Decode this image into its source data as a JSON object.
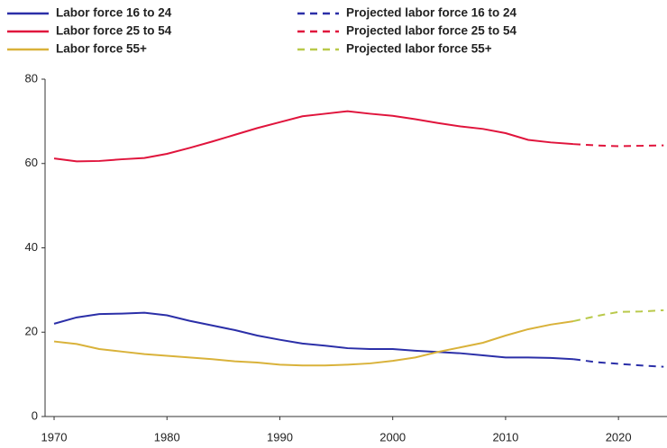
{
  "chart_data": {
    "type": "line",
    "series": [
      {
        "name": "Labor force 16 to 24",
        "color": "#2b2fa8",
        "style": "solid",
        "x": [
          1970,
          1972,
          1974,
          1976,
          1978,
          1980,
          1982,
          1984,
          1986,
          1988,
          1990,
          1992,
          1994,
          1996,
          1998,
          2000,
          2002,
          2004,
          2006,
          2008,
          2010,
          2012,
          2014,
          2016
        ],
        "values": [
          22,
          23.5,
          24.3,
          24.4,
          24.6,
          24,
          22.7,
          21.6,
          20.5,
          19.2,
          18.2,
          17.3,
          16.8,
          16.2,
          16,
          16,
          15.6,
          15.3,
          15,
          14.5,
          14,
          14,
          13.9,
          13.6
        ]
      },
      {
        "name": "Labor force 25 to 54",
        "color": "#e0143c",
        "style": "solid",
        "x": [
          1970,
          1972,
          1974,
          1976,
          1978,
          1980,
          1982,
          1984,
          1986,
          1988,
          1990,
          1992,
          1994,
          1996,
          1998,
          2000,
          2002,
          2004,
          2006,
          2008,
          2010,
          2012,
          2014,
          2016
        ],
        "values": [
          61.2,
          60.5,
          60.6,
          61,
          61.3,
          62.3,
          63.7,
          65.2,
          66.8,
          68.4,
          69.8,
          71.2,
          71.8,
          72.4,
          71.8,
          71.3,
          70.5,
          69.6,
          68.8,
          68.2,
          67.2,
          65.6,
          65,
          64.6
        ]
      },
      {
        "name": "Labor force 55+",
        "color": "#d9b23a",
        "style": "solid",
        "x": [
          1970,
          1972,
          1974,
          1976,
          1978,
          1980,
          1982,
          1984,
          1986,
          1988,
          1990,
          1992,
          1994,
          1996,
          1998,
          2000,
          2002,
          2004,
          2006,
          2008,
          2010,
          2012,
          2014,
          2016
        ],
        "values": [
          17.8,
          17.2,
          16,
          15.4,
          14.8,
          14.4,
          14,
          13.6,
          13.1,
          12.8,
          12.3,
          12.1,
          12.1,
          12.3,
          12.6,
          13.2,
          14,
          15.3,
          16.4,
          17.5,
          19.2,
          20.7,
          21.8,
          22.6
        ]
      },
      {
        "name": "Projected labor force 16 to 24",
        "color": "#2b2fa8",
        "style": "dashed",
        "x": [
          2016,
          2018,
          2020,
          2022,
          2024
        ],
        "values": [
          13.6,
          12.9,
          12.5,
          12.1,
          11.8
        ]
      },
      {
        "name": "Projected labor force 25 to 54",
        "color": "#e0143c",
        "style": "dashed",
        "x": [
          2016,
          2018,
          2020,
          2022,
          2024
        ],
        "values": [
          64.6,
          64.3,
          64.1,
          64.2,
          64.3
        ]
      },
      {
        "name": "Projected labor force 55+",
        "color": "#b9c94a",
        "style": "dashed",
        "x": [
          2016,
          2018,
          2020,
          2022,
          2024
        ],
        "values": [
          22.6,
          23.8,
          24.8,
          24.9,
          25.2
        ]
      }
    ],
    "xlim": [
      1969.2,
      2024.3
    ],
    "xticks": [
      1970,
      1980,
      1990,
      2000,
      2010,
      2020
    ],
    "ylim": [
      0,
      80
    ],
    "yticks": [
      0,
      20,
      40,
      60,
      80
    ],
    "legend": "top",
    "grid": false
  }
}
